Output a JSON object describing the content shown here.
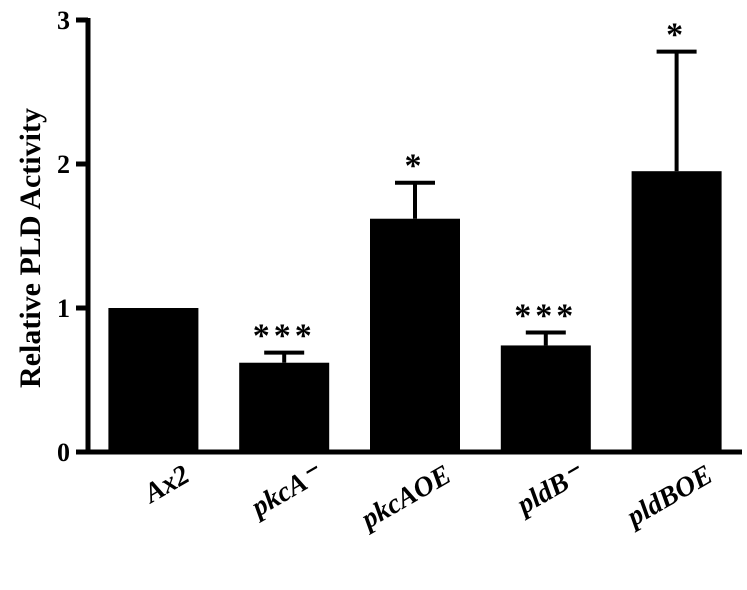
{
  "chart_data": {
    "type": "bar",
    "title": "",
    "xlabel": "",
    "ylabel": "Relative  PLD Activity",
    "ylim": [
      0,
      3
    ],
    "yticks": [
      "0",
      "1",
      "2",
      "3"
    ],
    "categories": [
      "Ax2",
      "pkcA⁻",
      "pkcAOE",
      "pldB⁻",
      "pldBOE"
    ],
    "values": [
      1.0,
      0.62,
      1.62,
      0.74,
      1.95
    ],
    "error_upper": [
      0.0,
      0.07,
      0.25,
      0.09,
      0.83
    ],
    "significance": [
      "",
      "***",
      "*",
      "***",
      "*"
    ],
    "bar_color": "#000000",
    "grid": false,
    "legend": "none"
  }
}
